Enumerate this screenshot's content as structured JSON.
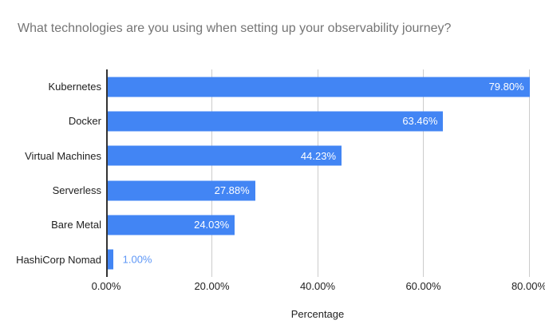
{
  "title": "What technologies are you using when setting up your observability journey?",
  "chart_data": {
    "type": "bar",
    "orientation": "horizontal",
    "title": "What technologies are you using when setting up your observability journey?",
    "categories": [
      "Kubernetes",
      "Docker",
      "Virtual Machines",
      "Serverless",
      "Bare Metal",
      "HashiCorp Nomad"
    ],
    "values": [
      79.8,
      63.46,
      44.23,
      27.88,
      24.03,
      1.0
    ],
    "value_labels": [
      "79.80%",
      "63.46%",
      "44.23%",
      "27.88%",
      "24.03%",
      "1.00%"
    ],
    "value_label_positions": [
      "inside",
      "inside",
      "inside",
      "inside",
      "inside",
      "outside"
    ],
    "xlabel": "Percentage",
    "ylabel": "",
    "xlim": [
      0,
      80
    ],
    "x_ticks": [
      {
        "value": 0,
        "label": "0.00%"
      },
      {
        "value": 20,
        "label": "20.00%"
      },
      {
        "value": 40,
        "label": "40.00%"
      },
      {
        "value": 60,
        "label": "60.00%"
      },
      {
        "value": 80,
        "label": "80.00%"
      }
    ],
    "grid": "vertical",
    "legend": "none"
  },
  "colors": {
    "bar": "#4285f4",
    "value_label_inside": "#ffffff",
    "value_label_outside": "#5e97f6",
    "title_text": "#757575",
    "axis_text": "#222222",
    "gridline": "#cccccc",
    "baseline": "#333333",
    "background": "#ffffff"
  }
}
